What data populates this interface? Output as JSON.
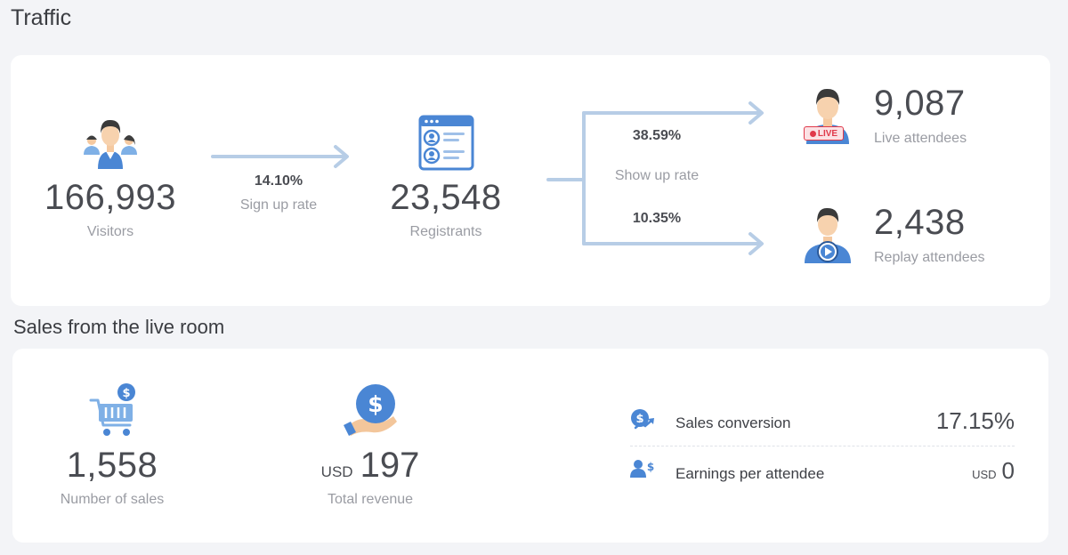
{
  "traffic": {
    "title": "Traffic",
    "visitors": {
      "value": "166,993",
      "label": "Visitors"
    },
    "signup": {
      "rate": "14.10%",
      "label": "Sign up rate"
    },
    "registrants": {
      "value": "23,548",
      "label": "Registrants"
    },
    "show_up": {
      "label": "Show up rate",
      "live_rate": "38.59%",
      "replay_rate": "10.35%"
    },
    "live": {
      "value": "9,087",
      "label": "Live attendees",
      "badge": "LIVE"
    },
    "replay": {
      "value": "2,438",
      "label": "Replay attendees"
    }
  },
  "sales": {
    "title": "Sales from the live room",
    "number_of_sales": {
      "value": "1,558",
      "label": "Number of sales"
    },
    "revenue": {
      "currency": "USD",
      "value": "197",
      "label": "Total revenue"
    },
    "conversion": {
      "label": "Sales conversion",
      "value": "17.15%"
    },
    "earnings": {
      "label": "Earnings per attendee",
      "currency": "USD",
      "value": "0"
    }
  },
  "icons": {
    "visitors": "visitors-group-icon",
    "registrants": "registration-form-icon",
    "live": "live-attendee-icon",
    "replay": "replay-attendee-icon",
    "cart": "shopping-cart-icon",
    "revenue": "dollar-hand-icon",
    "conversion": "sales-conversion-icon",
    "earnings": "earnings-per-attendee-icon"
  },
  "colors": {
    "accent": "#4a86d4",
    "arrow": "#b7cde6",
    "live_red": "#e0394a"
  }
}
